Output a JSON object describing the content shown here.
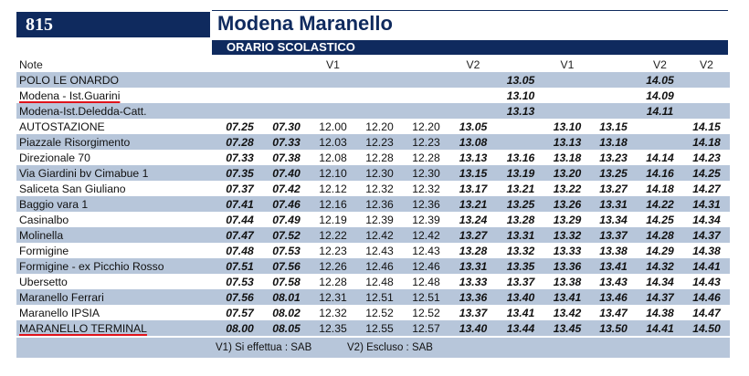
{
  "route": {
    "number": "815",
    "title": "Modena Maranello",
    "subtitle": "ORARIO SCOLASTICO"
  },
  "header": {
    "note": "Note",
    "cols": [
      "",
      "",
      "V1",
      "",
      "",
      "V2",
      "",
      "V1",
      "",
      "V2",
      "V2"
    ]
  },
  "rows": [
    {
      "stop": "POLO LE ONARDO",
      "times": [
        "",
        "",
        "",
        "",
        "",
        "",
        "13.05",
        "",
        "",
        "14.05",
        ""
      ]
    },
    {
      "stop": "Modena - Ist.Guarini",
      "times": [
        "",
        "",
        "",
        "",
        "",
        "",
        "13.10",
        "",
        "",
        "14.09",
        ""
      ]
    },
    {
      "stop": "Modena-Ist.Deledda-Catt.",
      "times": [
        "",
        "",
        "",
        "",
        "",
        "",
        "13.13",
        "",
        "",
        "14.11",
        ""
      ]
    },
    {
      "stop": "AUTOSTAZIONE",
      "times": [
        "07.25",
        "07.30",
        "12.00",
        "12.20",
        "12.20",
        "13.05",
        "",
        "13.10",
        "13.15",
        "",
        "14.15"
      ]
    },
    {
      "stop": "Piazzale Risorgimento",
      "times": [
        "07.28",
        "07.33",
        "12.03",
        "12.23",
        "12.23",
        "13.08",
        "",
        "13.13",
        "13.18",
        "",
        "14.18"
      ]
    },
    {
      "stop": "Direzionale 70",
      "times": [
        "07.33",
        "07.38",
        "12.08",
        "12.28",
        "12.28",
        "13.13",
        "13.16",
        "13.18",
        "13.23",
        "14.14",
        "14.23"
      ]
    },
    {
      "stop": "Via Giardini bv Cimabue 1",
      "times": [
        "07.35",
        "07.40",
        "12.10",
        "12.30",
        "12.30",
        "13.15",
        "13.19",
        "13.20",
        "13.25",
        "14.16",
        "14.25"
      ]
    },
    {
      "stop": "Saliceta San Giuliano",
      "times": [
        "07.37",
        "07.42",
        "12.12",
        "12.32",
        "12.32",
        "13.17",
        "13.21",
        "13.22",
        "13.27",
        "14.18",
        "14.27"
      ]
    },
    {
      "stop": "Baggio vara 1",
      "times": [
        "07.41",
        "07.46",
        "12.16",
        "12.36",
        "12.36",
        "13.21",
        "13.25",
        "13.26",
        "13.31",
        "14.22",
        "14.31"
      ]
    },
    {
      "stop": "Casinalbo",
      "times": [
        "07.44",
        "07.49",
        "12.19",
        "12.39",
        "12.39",
        "13.24",
        "13.28",
        "13.29",
        "13.34",
        "14.25",
        "14.34"
      ]
    },
    {
      "stop": "Molinella",
      "times": [
        "07.47",
        "07.52",
        "12.22",
        "12.42",
        "12.42",
        "13.27",
        "13.31",
        "13.32",
        "13.37",
        "14.28",
        "14.37"
      ]
    },
    {
      "stop": "Formigine",
      "times": [
        "07.48",
        "07.53",
        "12.23",
        "12.43",
        "12.43",
        "13.28",
        "13.32",
        "13.33",
        "13.38",
        "14.29",
        "14.38"
      ]
    },
    {
      "stop": "Formigine - ex Picchio Rosso",
      "times": [
        "07.51",
        "07.56",
        "12.26",
        "12.46",
        "12.46",
        "13.31",
        "13.35",
        "13.36",
        "13.41",
        "14.32",
        "14.41"
      ]
    },
    {
      "stop": "Ubersetto",
      "times": [
        "07.53",
        "07.58",
        "12.28",
        "12.48",
        "12.48",
        "13.33",
        "13.37",
        "13.38",
        "13.43",
        "14.34",
        "14.43"
      ]
    },
    {
      "stop": "Maranello Ferrari",
      "times": [
        "07.56",
        "08.01",
        "12.31",
        "12.51",
        "12.51",
        "13.36",
        "13.40",
        "13.41",
        "13.46",
        "14.37",
        "14.46"
      ]
    },
    {
      "stop": "Maranello IPSIA",
      "times": [
        "07.57",
        "08.02",
        "12.32",
        "12.52",
        "12.52",
        "13.37",
        "13.41",
        "13.42",
        "13.47",
        "14.38",
        "14.47"
      ]
    },
    {
      "stop": "MARANELLO TERMINAL",
      "times": [
        "08.00",
        "08.05",
        "12.35",
        "12.55",
        "12.57",
        "13.40",
        "13.44",
        "13.45",
        "13.50",
        "14.41",
        "14.50"
      ]
    }
  ],
  "legend": {
    "v1": "V1)  Si effettua : SAB",
    "v2": "V2)  Escluso : SAB"
  },
  "colors": {
    "navy": "#0f2a5e",
    "band": "#b7c6da",
    "underline": "#e0131b"
  }
}
